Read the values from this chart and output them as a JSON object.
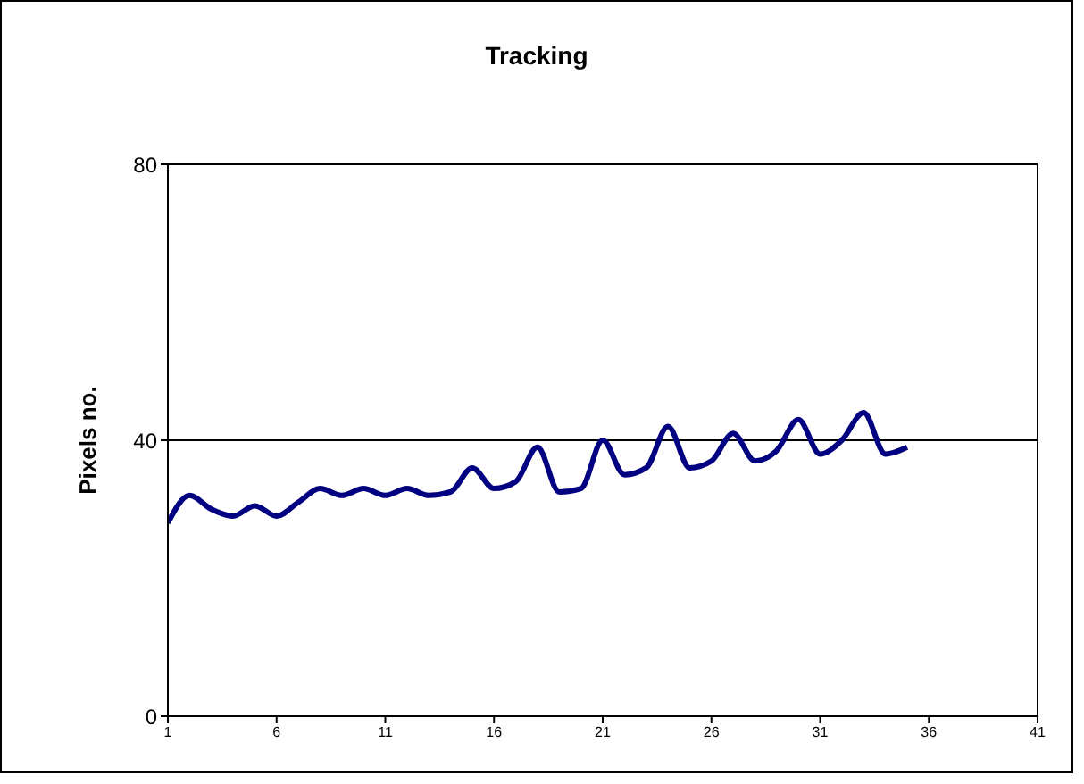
{
  "chart_data": {
    "type": "line",
    "title": "Tracking",
    "ylabel": "Pixels no.",
    "x": [
      1,
      2,
      3,
      4,
      5,
      6,
      7,
      8,
      9,
      10,
      11,
      12,
      13,
      14,
      15,
      16,
      17,
      18,
      19,
      20,
      21,
      22,
      23,
      24,
      25,
      26,
      27,
      28,
      29,
      30,
      31,
      32,
      33,
      34,
      35
    ],
    "series": [
      {
        "color": "#000080",
        "values": [
          28,
          32,
          30,
          29,
          30.5,
          29,
          31,
          33,
          32,
          33,
          32,
          33,
          32,
          32.5,
          36,
          33,
          34,
          39,
          32.5,
          33,
          40,
          35,
          36,
          42,
          36,
          37,
          41,
          37,
          38.5,
          43,
          38,
          40,
          44,
          38,
          39
        ]
      }
    ],
    "xlim": [
      1,
      41
    ],
    "xticks": [
      1,
      6,
      11,
      16,
      21,
      26,
      31,
      36,
      41
    ],
    "ylim": [
      0,
      80
    ],
    "yticks": [
      0,
      40,
      80
    ],
    "grid": "y",
    "legend": false,
    "marker": "none",
    "line_style": "solid"
  }
}
